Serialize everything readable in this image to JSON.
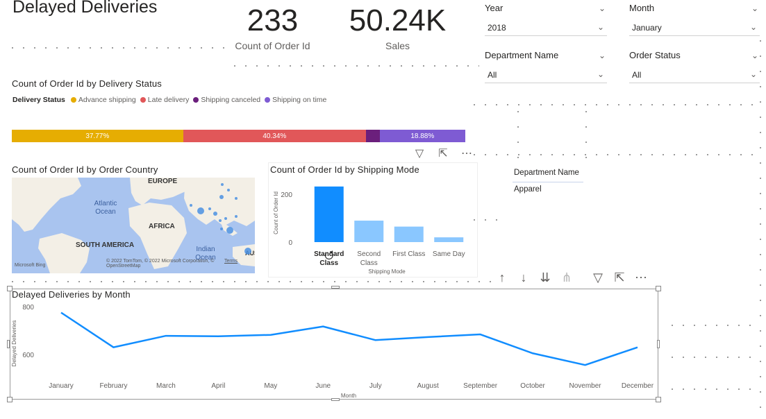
{
  "report": {
    "title": "Delayed Deliveries"
  },
  "cards": [
    {
      "value": "233",
      "label": "Count of Order Id"
    },
    {
      "value": "50.24K",
      "label": "Sales"
    }
  ],
  "slicers": {
    "year": {
      "label": "Year",
      "value": "2018"
    },
    "month": {
      "label": "Month",
      "value": "January"
    },
    "department": {
      "label": "Department Name",
      "value": "All"
    },
    "status": {
      "label": "Order Status",
      "value": "All"
    }
  },
  "delivery_status": {
    "title": "Count of Order Id by Delivery Status",
    "legend_title": "Delivery Status",
    "segments": [
      {
        "name": "Advance shipping",
        "color": "#E6AD02",
        "share": 37.77,
        "label": "37.77%"
      },
      {
        "name": "Late delivery",
        "color": "#E15759",
        "share": 40.34,
        "label": "40.34%"
      },
      {
        "name": "Shipping canceled",
        "color": "#6B1F7C",
        "share": 3.01,
        "label": ""
      },
      {
        "name": "Shipping on time",
        "color": "#7E5BD3",
        "share": 18.88,
        "label": "18.88%"
      }
    ]
  },
  "map_visual": {
    "title": "Count of Order Id by Order Country",
    "labels": {
      "europe": "EUROPE",
      "atlantic": "Atlantic Ocean",
      "africa": "AFRICA",
      "south_america": "SOUTH AMERICA",
      "indian": "Indian Ocean",
      "aus": "AUS"
    },
    "attribution": "© 2022 TomTom, © 2022 Microsoft Corporation, © OpenStreetMap",
    "terms": "Terms",
    "brand": "Microsoft Bing",
    "bubble_color": "#4A90E2"
  },
  "table_visual": {
    "header": "Department Name",
    "rows": [
      "Apparel"
    ]
  },
  "visual_header_icons": {
    "filter": "filter-icon",
    "focus": "focus-mode-icon",
    "more": "more-options-icon",
    "up": "drill-up-icon",
    "down": "drill-down-icon",
    "expand": "expand-all-icon",
    "fork": "drill-fork-icon"
  },
  "chart_data": [
    {
      "type": "bar",
      "title": "Count of Order Id by Shipping Mode",
      "xlabel": "Shipping Mode",
      "ylabel": "Count of Order Id",
      "categories": [
        "Standard Class",
        "Second Class",
        "First Class",
        "Same Day"
      ],
      "values": [
        233,
        90,
        65,
        20
      ],
      "colors": [
        "#118DFF",
        "#8AC7FF",
        "#8AC7FF",
        "#8AC7FF"
      ],
      "yticks": [
        "0",
        "200"
      ],
      "ylim": [
        0,
        250
      ]
    },
    {
      "type": "line",
      "title": "Delayed Deliveries by Month",
      "xlabel": "Month",
      "ylabel": "Delayed Deliveries",
      "categories": [
        "January",
        "February",
        "March",
        "April",
        "May",
        "June",
        "July",
        "August",
        "September",
        "October",
        "November",
        "December"
      ],
      "values": [
        775,
        630,
        678,
        676,
        682,
        717,
        660,
        673,
        684,
        605,
        556,
        630
      ],
      "yticks": [
        "600",
        "800"
      ],
      "ylim": [
        540,
        820
      ],
      "color": "#118DFF"
    }
  ]
}
